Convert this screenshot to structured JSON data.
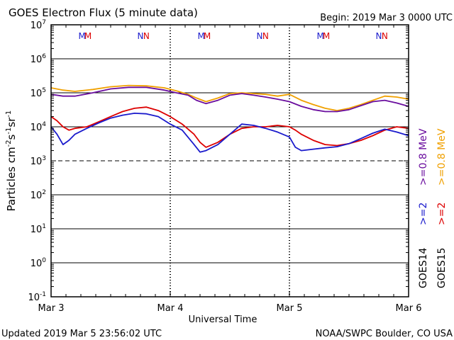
{
  "header": {
    "title": "GOES Electron Flux (5 minute data)",
    "begin": "Begin: 2019 Mar 3 0000 UTC"
  },
  "footer": {
    "updated": "Updated 2019 Mar  5 23:56:02 UTC",
    "credit": "NOAA/SWPC Boulder, CO USA"
  },
  "chart_data": {
    "type": "line",
    "title": "GOES Electron Flux (5 minute data)",
    "xlabel": "Universal Time",
    "ylabel": {
      "base": "Particles cm",
      "e1": "-2",
      "mid1": "s",
      "e2": "-1",
      "mid2": "sr",
      "e3": "-1"
    },
    "x_ticks": [
      "Mar 3",
      "Mar 4",
      "Mar 5",
      "Mar 6"
    ],
    "xlim_days": [
      0,
      3
    ],
    "ylim_log10": [
      -1,
      7
    ],
    "y_scale": "log",
    "y_tick_exponents": [
      -1,
      0,
      1,
      2,
      3,
      4,
      5,
      6,
      7
    ],
    "y_tick_base": "10",
    "grid": "horizontal lines at each decade; dashed line at 10^3",
    "markers": [
      {
        "label": "M",
        "day": 0.26,
        "color": "#1a1acc"
      },
      {
        "label": "M",
        "day": 0.31,
        "color": "#dd0000"
      },
      {
        "label": "N",
        "day": 0.75,
        "color": "#1a1acc"
      },
      {
        "label": "N",
        "day": 0.8,
        "color": "#dd0000"
      },
      {
        "label": "M",
        "day": 1.26,
        "color": "#1a1acc"
      },
      {
        "label": "M",
        "day": 1.31,
        "color": "#dd0000"
      },
      {
        "label": "N",
        "day": 1.75,
        "color": "#1a1acc"
      },
      {
        "label": "N",
        "day": 1.8,
        "color": "#dd0000"
      },
      {
        "label": "M",
        "day": 2.26,
        "color": "#1a1acc"
      },
      {
        "label": "M",
        "day": 2.31,
        "color": "#dd0000"
      },
      {
        "label": "N",
        "day": 2.75,
        "color": "#1a1acc"
      },
      {
        "label": "N",
        "day": 2.8,
        "color": "#dd0000"
      }
    ],
    "legend": {
      "goes14": {
        "sat": "GOES14",
        "low": ">=0.8 MeV",
        "high": ">=2",
        "low_color": "#6a0d9e",
        "high_color": "#1a1acc"
      },
      "goes15": {
        "sat": "GOES15",
        "low": ">=0.8 MeV",
        "high": ">=2",
        "low_color": "#f0a000",
        "high_color": "#dd0000"
      }
    },
    "series": [
      {
        "name": "GOES15 >=0.8 MeV",
        "color": "#f0a000",
        "points": [
          [
            0,
            140000
          ],
          [
            0.1,
            120000
          ],
          [
            0.2,
            110000
          ],
          [
            0.35,
            125000
          ],
          [
            0.5,
            150000
          ],
          [
            0.65,
            165000
          ],
          [
            0.8,
            160000
          ],
          [
            0.95,
            140000
          ],
          [
            1.05,
            115000
          ],
          [
            1.15,
            90000
          ],
          [
            1.22,
            70000
          ],
          [
            1.3,
            55000
          ],
          [
            1.4,
            70000
          ],
          [
            1.5,
            95000
          ],
          [
            1.6,
            100000
          ],
          [
            1.7,
            95000
          ],
          [
            1.8,
            90000
          ],
          [
            1.9,
            80000
          ],
          [
            2.0,
            90000
          ],
          [
            2.1,
            60000
          ],
          [
            2.2,
            45000
          ],
          [
            2.3,
            35000
          ],
          [
            2.4,
            30000
          ],
          [
            2.5,
            35000
          ],
          [
            2.6,
            45000
          ],
          [
            2.7,
            60000
          ],
          [
            2.8,
            80000
          ],
          [
            2.9,
            75000
          ],
          [
            3.0,
            65000
          ]
        ]
      },
      {
        "name": "GOES14 >=0.8 MeV",
        "color": "#6a0d9e",
        "points": [
          [
            0,
            90000
          ],
          [
            0.1,
            80000
          ],
          [
            0.2,
            80000
          ],
          [
            0.35,
            100000
          ],
          [
            0.5,
            130000
          ],
          [
            0.65,
            145000
          ],
          [
            0.8,
            145000
          ],
          [
            0.95,
            120000
          ],
          [
            1.05,
            100000
          ],
          [
            1.15,
            85000
          ],
          [
            1.22,
            60000
          ],
          [
            1.3,
            48000
          ],
          [
            1.4,
            60000
          ],
          [
            1.5,
            85000
          ],
          [
            1.6,
            95000
          ],
          [
            1.7,
            85000
          ],
          [
            1.8,
            75000
          ],
          [
            1.9,
            65000
          ],
          [
            2.0,
            55000
          ],
          [
            2.1,
            40000
          ],
          [
            2.2,
            32000
          ],
          [
            2.3,
            28000
          ],
          [
            2.4,
            28000
          ],
          [
            2.5,
            32000
          ],
          [
            2.6,
            42000
          ],
          [
            2.7,
            55000
          ],
          [
            2.8,
            60000
          ],
          [
            2.9,
            50000
          ],
          [
            3.0,
            40000
          ]
        ]
      },
      {
        "name": "GOES15 >=2 MeV",
        "color": "#dd0000",
        "points": [
          [
            0,
            20000
          ],
          [
            0.05,
            15000
          ],
          [
            0.1,
            10000
          ],
          [
            0.15,
            8000
          ],
          [
            0.2,
            9000
          ],
          [
            0.3,
            10000
          ],
          [
            0.4,
            14000
          ],
          [
            0.5,
            20000
          ],
          [
            0.6,
            28000
          ],
          [
            0.7,
            35000
          ],
          [
            0.8,
            38000
          ],
          [
            0.9,
            30000
          ],
          [
            1.0,
            20000
          ],
          [
            1.1,
            12000
          ],
          [
            1.2,
            6000
          ],
          [
            1.25,
            3500
          ],
          [
            1.3,
            2500
          ],
          [
            1.4,
            3500
          ],
          [
            1.5,
            6000
          ],
          [
            1.6,
            9000
          ],
          [
            1.7,
            10000
          ],
          [
            1.8,
            10000
          ],
          [
            1.9,
            11000
          ],
          [
            2.0,
            10000
          ],
          [
            2.05,
            8000
          ],
          [
            2.1,
            6000
          ],
          [
            2.2,
            4000
          ],
          [
            2.3,
            3000
          ],
          [
            2.4,
            2800
          ],
          [
            2.5,
            3200
          ],
          [
            2.6,
            4000
          ],
          [
            2.7,
            5500
          ],
          [
            2.8,
            8000
          ],
          [
            2.9,
            10000
          ],
          [
            3.0,
            9000
          ]
        ]
      },
      {
        "name": "GOES14 >=2 MeV",
        "color": "#1a1acc",
        "points": [
          [
            0,
            10000
          ],
          [
            0.05,
            6000
          ],
          [
            0.1,
            3000
          ],
          [
            0.15,
            4000
          ],
          [
            0.2,
            6000
          ],
          [
            0.3,
            9000
          ],
          [
            0.4,
            13000
          ],
          [
            0.5,
            18000
          ],
          [
            0.6,
            22000
          ],
          [
            0.7,
            25000
          ],
          [
            0.8,
            24000
          ],
          [
            0.9,
            20000
          ],
          [
            1.0,
            12000
          ],
          [
            1.1,
            8000
          ],
          [
            1.2,
            3000
          ],
          [
            1.25,
            1800
          ],
          [
            1.3,
            2000
          ],
          [
            1.4,
            3000
          ],
          [
            1.5,
            6000
          ],
          [
            1.6,
            12000
          ],
          [
            1.7,
            11000
          ],
          [
            1.8,
            9000
          ],
          [
            1.9,
            7000
          ],
          [
            2.0,
            5000
          ],
          [
            2.05,
            2500
          ],
          [
            2.1,
            2000
          ],
          [
            2.2,
            2200
          ],
          [
            2.3,
            2400
          ],
          [
            2.4,
            2600
          ],
          [
            2.5,
            3200
          ],
          [
            2.6,
            4500
          ],
          [
            2.7,
            6500
          ],
          [
            2.8,
            8500
          ],
          [
            2.9,
            7000
          ],
          [
            3.0,
            5500
          ]
        ]
      }
    ]
  }
}
